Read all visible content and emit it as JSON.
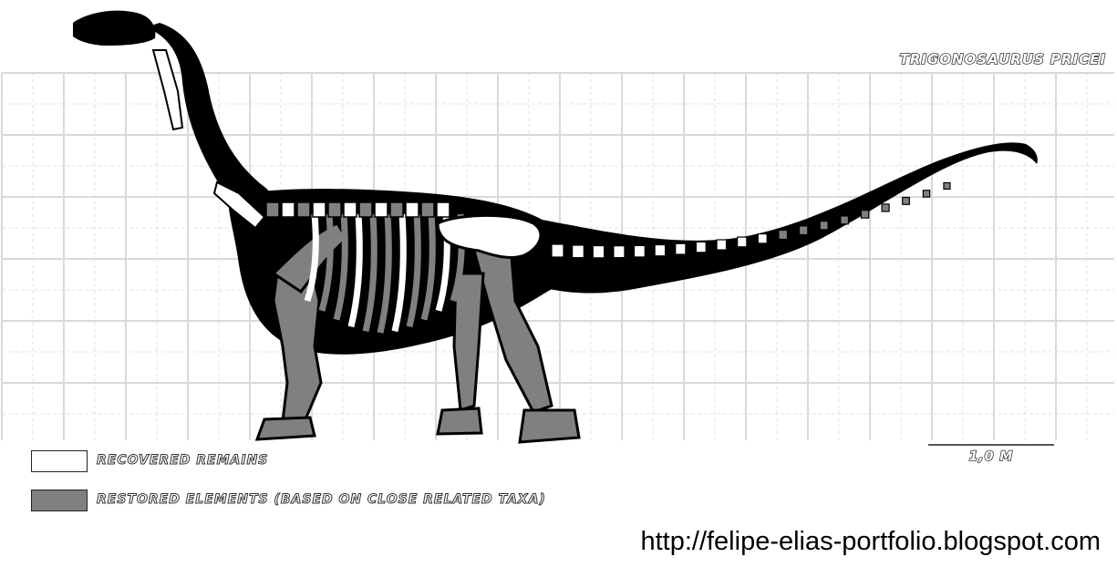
{
  "figure": {
    "species_label": "TRIGONOSAURUS PRICEI",
    "scale_label": "1,0 M"
  },
  "legend": {
    "items": [
      {
        "label": "RECOVERED REMAINS",
        "color": "#ffffff"
      },
      {
        "label": "RESTORED ELEMENTS (BASED ON CLOSE RELATED TAXA)",
        "color": "#808080"
      }
    ]
  },
  "footer": {
    "url": "http://felipe-elias-portfolio.blogspot.com"
  },
  "colors": {
    "silhouette": "#000000",
    "recovered_bone": "#ffffff",
    "restored_bone": "#808080",
    "grid_major": "#d9d9d9",
    "grid_minor": "#e3e3e3"
  }
}
